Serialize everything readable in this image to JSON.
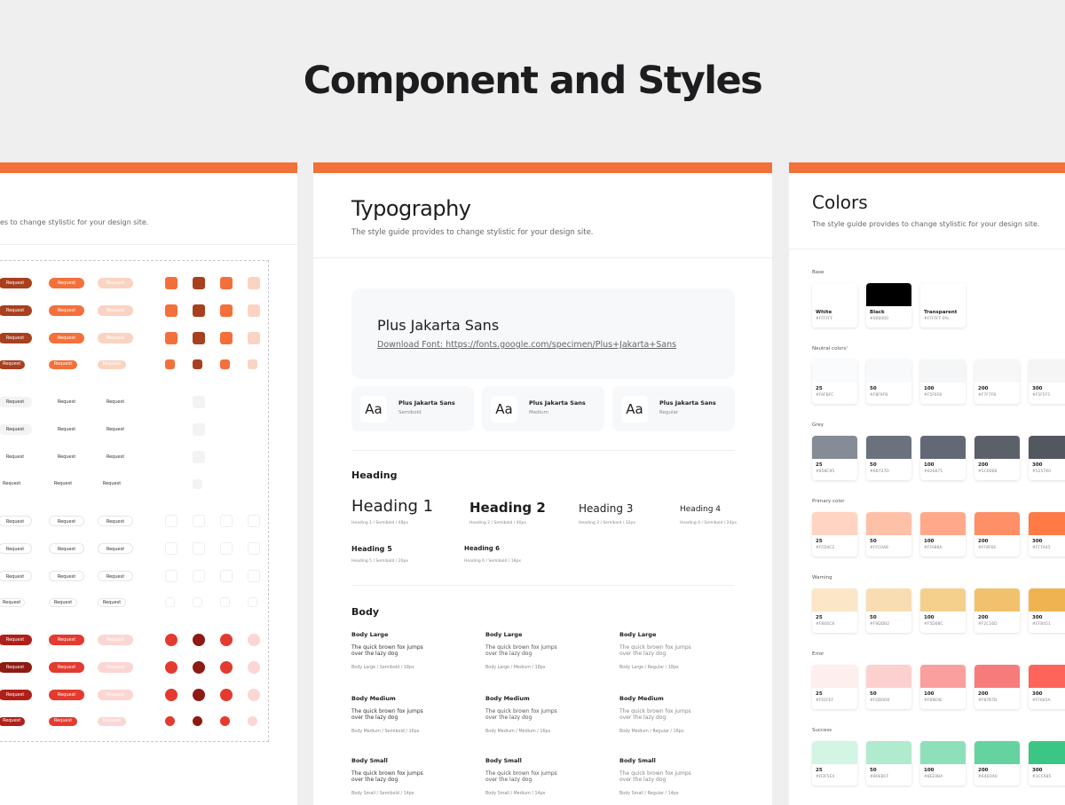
{
  "header": {
    "title": "Component and Styles"
  },
  "left_panel": {
    "subtitle": "es to change stylistic for your design site.",
    "button_label": "Request"
  },
  "typography": {
    "title": "Typography",
    "subtitle": "The style guide provides to change stylistic for your design site.",
    "font_name": "Plus Jakarta Sans",
    "download": "Download Font: https://fonts.google.com/specimen/Plus+Jakarta+Sans",
    "weights": [
      {
        "sample": "Aa",
        "name": "Plus Jakarta Sans",
        "weight": "Semibold"
      },
      {
        "sample": "Aa",
        "name": "Plus Jakarta Sans",
        "weight": "Medium"
      },
      {
        "sample": "Aa",
        "name": "Plus Jakarta Sans",
        "weight": "Regular"
      }
    ],
    "heading_section": "Heading",
    "headings": [
      {
        "name": "Heading 1",
        "spec": "Heading 1 / Semibold / 48px"
      },
      {
        "name": "Heading 2",
        "spec": "Heading 2 / Semibold / 40px"
      },
      {
        "name": "Heading 3",
        "spec": "Heading 3 / Semibold / 32px"
      },
      {
        "name": "Heading 4",
        "spec": "Heading 4 / Semibold / 24px"
      },
      {
        "name": "Heading 5",
        "spec": "Heading 5 / Semibold / 20px"
      },
      {
        "name": "Heading 6",
        "spec": "Heading 6 / Semibold / 18px"
      }
    ],
    "body_section": "Body",
    "body": [
      [
        {
          "name": "Body Large",
          "sample": "The quick brown fox jumps over the lazy dog",
          "spec": "Body Large / Semibold / 18px"
        },
        {
          "name": "Body Large",
          "sample": "The quick brown fox jumps over the lazy dog",
          "spec": "Body Large / Medium / 18px"
        },
        {
          "name": "Body Large",
          "sample": "The quick brown fox jumps over the lazy dog",
          "spec": "Body Large / Regular / 18px"
        }
      ],
      [
        {
          "name": "Body Medium",
          "sample": "The quick brown fox jumps over the lazy dog",
          "spec": "Body Medium / Semibold / 16px"
        },
        {
          "name": "Body Medium",
          "sample": "The quick brown fox jumps over the lazy dog",
          "spec": "Body Medium / Medium / 16px"
        },
        {
          "name": "Body Medium",
          "sample": "The quick brown fox jumps over the lazy dog",
          "spec": "Body Medium / Regular / 16px"
        }
      ],
      [
        {
          "name": "Body Small",
          "sample": "The quick brown fox jumps over the lazy dog",
          "spec": "Body Small / Semibold / 14px"
        },
        {
          "name": "Body Small",
          "sample": "The quick brown fox jumps over the lazy dog",
          "spec": "Body Small / Medium / 14px"
        },
        {
          "name": "Body Small",
          "sample": "The quick brown fox jumps over the lazy dog",
          "spec": "Body Small / Regular / 14px"
        }
      ]
    ]
  },
  "colors": {
    "title": "Colors",
    "subtitle": "The style guide provides to change stylistic for your design site.",
    "groups": [
      {
        "name": "Base",
        "swatches": [
          {
            "label": "White",
            "hex": "#FFFFFF"
          },
          {
            "label": "Black",
            "hex": "#000000"
          },
          {
            "label": "Transparent",
            "hex": "#FFFFFF 0%"
          }
        ]
      },
      {
        "name": "Neutral colors'",
        "swatches": [
          {
            "label": "25",
            "hex": "#FAFBFC"
          },
          {
            "label": "50",
            "hex": "#F8F9FB"
          },
          {
            "label": "100",
            "hex": "#F5F6F8"
          },
          {
            "label": "200",
            "hex": "#F7F7F8"
          },
          {
            "label": "300",
            "hex": "#F5F5F5"
          }
        ]
      },
      {
        "name": "Grey",
        "swatches": [
          {
            "label": "25",
            "hex": "#858C95"
          },
          {
            "label": "50",
            "hex": "#6B727D"
          },
          {
            "label": "100",
            "hex": "#626875"
          },
          {
            "label": "200",
            "hex": "#5C6068"
          },
          {
            "label": "300",
            "hex": "#525760"
          }
        ]
      },
      {
        "name": "Primary color",
        "swatches": [
          {
            "label": "25",
            "hex": "#FFD4C2"
          },
          {
            "label": "50",
            "hex": "#FFC0A8"
          },
          {
            "label": "100",
            "hex": "#FFA88A"
          },
          {
            "label": "200",
            "hex": "#FF8F66"
          },
          {
            "label": "300",
            "hex": "#FF7A45"
          }
        ]
      },
      {
        "name": "Warning",
        "swatches": [
          {
            "label": "25",
            "hex": "#FBE6C8"
          },
          {
            "label": "50",
            "hex": "#F9DDB2"
          },
          {
            "label": "100",
            "hex": "#F5D08C"
          },
          {
            "label": "200",
            "hex": "#F2C16D"
          },
          {
            "label": "300",
            "hex": "#EFB451"
          }
        ]
      },
      {
        "name": "Error",
        "swatches": [
          {
            "label": "25",
            "hex": "#FEEFEF"
          },
          {
            "label": "50",
            "hex": "#FDD0D0"
          },
          {
            "label": "100",
            "hex": "#FB9E9E"
          },
          {
            "label": "200",
            "hex": "#F87B7B"
          },
          {
            "label": "300",
            "hex": "#FF645A"
          }
        ]
      },
      {
        "name": "Success",
        "swatches": [
          {
            "label": "25",
            "hex": "#D3F5E4"
          },
          {
            "label": "50",
            "hex": "#B0EBCF"
          },
          {
            "label": "100",
            "hex": "#8EE0BA"
          },
          {
            "label": "200",
            "hex": "#64D3A0"
          },
          {
            "label": "300",
            "hex": "#3CC685"
          }
        ]
      }
    ]
  }
}
